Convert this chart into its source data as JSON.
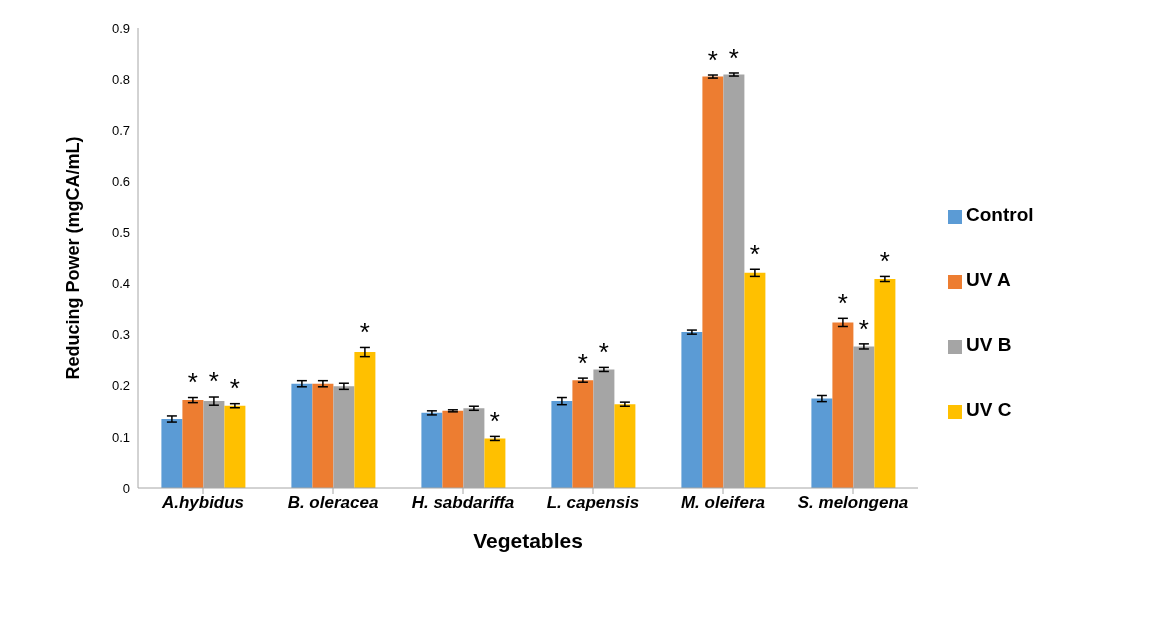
{
  "chart_data": {
    "type": "bar",
    "xlabel": "Vegetables",
    "ylabel": "Reducing Power (mgCA/mL)",
    "categories": [
      "A.hybidus",
      "B. oleracea",
      "H. sabdariffa",
      "L. capensis",
      "M. oleifera",
      "S. melongena"
    ],
    "series": [
      {
        "name": "Control",
        "color": "#5b9bd5",
        "values": [
          0.135,
          0.204,
          0.147,
          0.17,
          0.305,
          0.175
        ],
        "errors": [
          0.006,
          0.006,
          0.004,
          0.007,
          0.004,
          0.006
        ],
        "value_labels": [
          null,
          null,
          null,
          null,
          null,
          null
        ]
      },
      {
        "name": "UV A",
        "color": "#ed7d31",
        "values": [
          0.172,
          0.204,
          0.151,
          0.211,
          0.805,
          0.324
        ],
        "errors": [
          0.005,
          0.006,
          0.002,
          0.004,
          0.003,
          0.008
        ],
        "value_labels": [
          "*",
          null,
          null,
          "*",
          "*",
          "*"
        ]
      },
      {
        "name": "UV B",
        "color": "#a5a5a5",
        "values": [
          0.17,
          0.199,
          0.156,
          0.232,
          0.809,
          0.277
        ],
        "errors": [
          0.008,
          0.006,
          0.004,
          0.004,
          0.003,
          0.005
        ],
        "value_labels": [
          "*",
          null,
          null,
          "*",
          "*",
          "*"
        ]
      },
      {
        "name": "UV C",
        "color": "#ffc000",
        "values": [
          0.161,
          0.266,
          0.097,
          0.164,
          0.421,
          0.409
        ],
        "errors": [
          0.004,
          0.009,
          0.004,
          0.004,
          0.007,
          0.005
        ],
        "value_labels": [
          "*",
          "*",
          "*",
          null,
          "*",
          "*"
        ]
      }
    ],
    "ylim": [
      0,
      0.9
    ],
    "yticks": [
      0,
      0.1,
      0.2,
      0.3,
      0.4,
      0.5,
      0.6,
      0.7,
      0.8,
      0.9
    ],
    "grid": false,
    "legend": "right"
  }
}
